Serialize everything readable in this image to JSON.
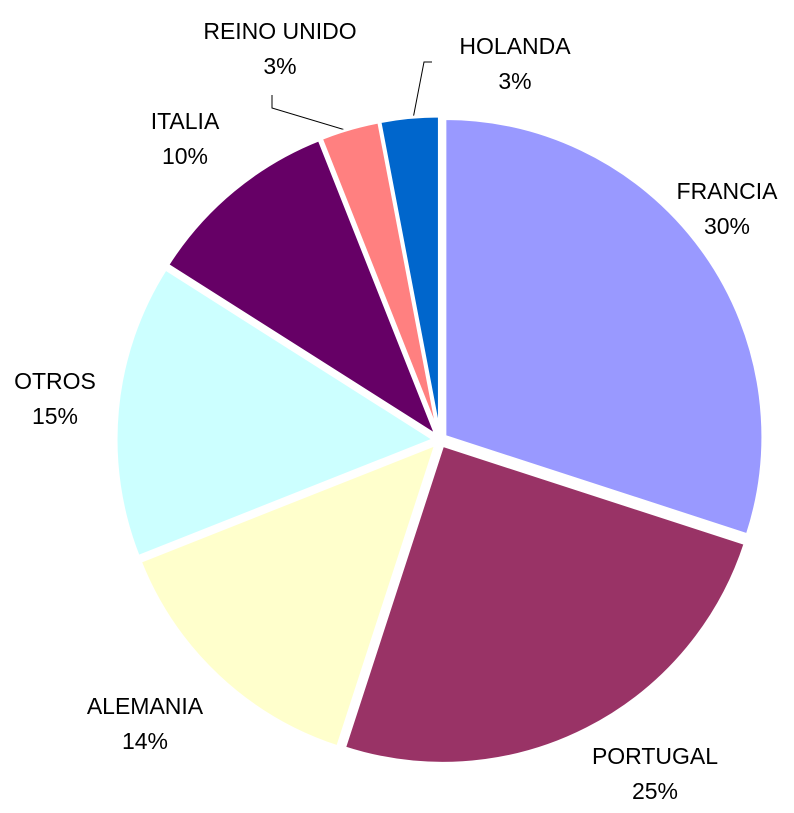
{
  "chart_data": {
    "type": "pie",
    "categories": [
      "FRANCIA",
      "PORTUGAL",
      "ALEMANIA",
      "OTROS",
      "ITALIA",
      "REINO UNIDO",
      "HOLANDA"
    ],
    "values": [
      30,
      25,
      14,
      15,
      10,
      3,
      3
    ],
    "value_labels": [
      "30%",
      "25%",
      "14%",
      "15%",
      "10%",
      "3%",
      "3%"
    ],
    "colors": [
      "#9999FF",
      "#993366",
      "#FFFFCC",
      "#CCFFFF",
      "#660066",
      "#FF8080",
      "#0066CC"
    ]
  }
}
